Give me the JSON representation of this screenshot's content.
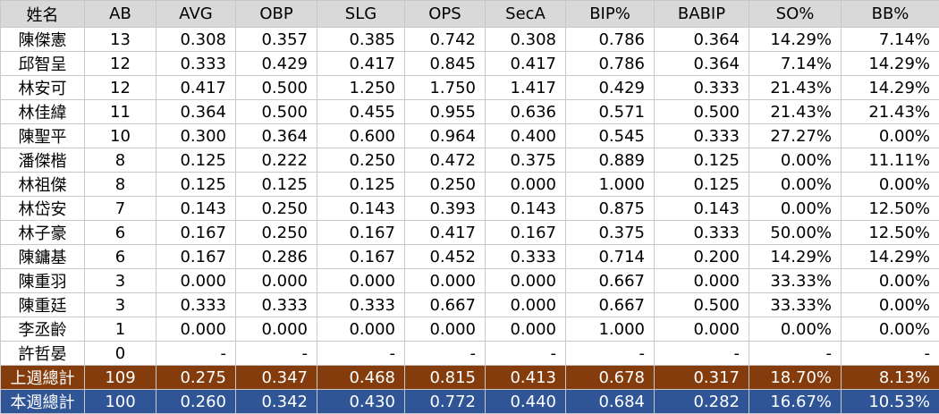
{
  "table": {
    "header": [
      "姓名",
      "AB",
      "AVG",
      "OBP",
      "SLG",
      "OPS",
      "SecA",
      "BIP%",
      "BABIP",
      "SO%",
      "BB%"
    ],
    "rows": [
      [
        "陳傑憲",
        "13",
        "0.308",
        "0.357",
        "0.385",
        "0.742",
        "0.308",
        "0.786",
        "0.364",
        "14.29%",
        "7.14%"
      ],
      [
        "邱智呈",
        "12",
        "0.333",
        "0.429",
        "0.417",
        "0.845",
        "0.417",
        "0.786",
        "0.364",
        "7.14%",
        "14.29%"
      ],
      [
        "林安可",
        "12",
        "0.417",
        "0.500",
        "1.250",
        "1.750",
        "1.417",
        "0.429",
        "0.333",
        "21.43%",
        "14.29%"
      ],
      [
        "林佳緯",
        "11",
        "0.364",
        "0.500",
        "0.455",
        "0.955",
        "0.636",
        "0.571",
        "0.500",
        "21.43%",
        "21.43%"
      ],
      [
        "陳聖平",
        "10",
        "0.300",
        "0.364",
        "0.600",
        "0.964",
        "0.400",
        "0.545",
        "0.333",
        "27.27%",
        "0.00%"
      ],
      [
        "潘傑楷",
        "8",
        "0.125",
        "0.222",
        "0.250",
        "0.472",
        "0.375",
        "0.889",
        "0.125",
        "0.00%",
        "11.11%"
      ],
      [
        "林祖傑",
        "8",
        "0.125",
        "0.125",
        "0.125",
        "0.250",
        "0.000",
        "1.000",
        "0.125",
        "0.00%",
        "0.00%"
      ],
      [
        "林岱安",
        "7",
        "0.143",
        "0.250",
        "0.143",
        "0.393",
        "0.143",
        "0.875",
        "0.143",
        "0.00%",
        "12.50%"
      ],
      [
        "林子豪",
        "6",
        "0.167",
        "0.250",
        "0.167",
        "0.417",
        "0.167",
        "0.375",
        "0.333",
        "50.00%",
        "12.50%"
      ],
      [
        "陳鏞基",
        "6",
        "0.167",
        "0.286",
        "0.167",
        "0.452",
        "0.333",
        "0.714",
        "0.200",
        "14.29%",
        "14.29%"
      ],
      [
        "陳重羽",
        "3",
        "0.000",
        "0.000",
        "0.000",
        "0.000",
        "0.000",
        "0.667",
        "0.000",
        "33.33%",
        "0.00%"
      ],
      [
        "陳重廷",
        "3",
        "0.333",
        "0.333",
        "0.333",
        "0.667",
        "0.000",
        "0.667",
        "0.500",
        "33.33%",
        "0.00%"
      ],
      [
        "李丞齡",
        "1",
        "0.000",
        "0.000",
        "0.000",
        "0.000",
        "0.000",
        "1.000",
        "0.000",
        "0.00%",
        "0.00%"
      ],
      [
        "許哲晏",
        "0",
        "-",
        "-",
        "-",
        "-",
        "-",
        "-",
        "-",
        "-",
        "-"
      ]
    ],
    "totals": [
      [
        "上週總計",
        "109",
        "0.275",
        "0.347",
        "0.468",
        "0.815",
        "0.413",
        "0.678",
        "0.317",
        "18.70%",
        "8.13%"
      ],
      [
        "本週總計",
        "100",
        "0.260",
        "0.342",
        "0.430",
        "0.772",
        "0.440",
        "0.684",
        "0.282",
        "16.67%",
        "10.53%"
      ]
    ]
  }
}
